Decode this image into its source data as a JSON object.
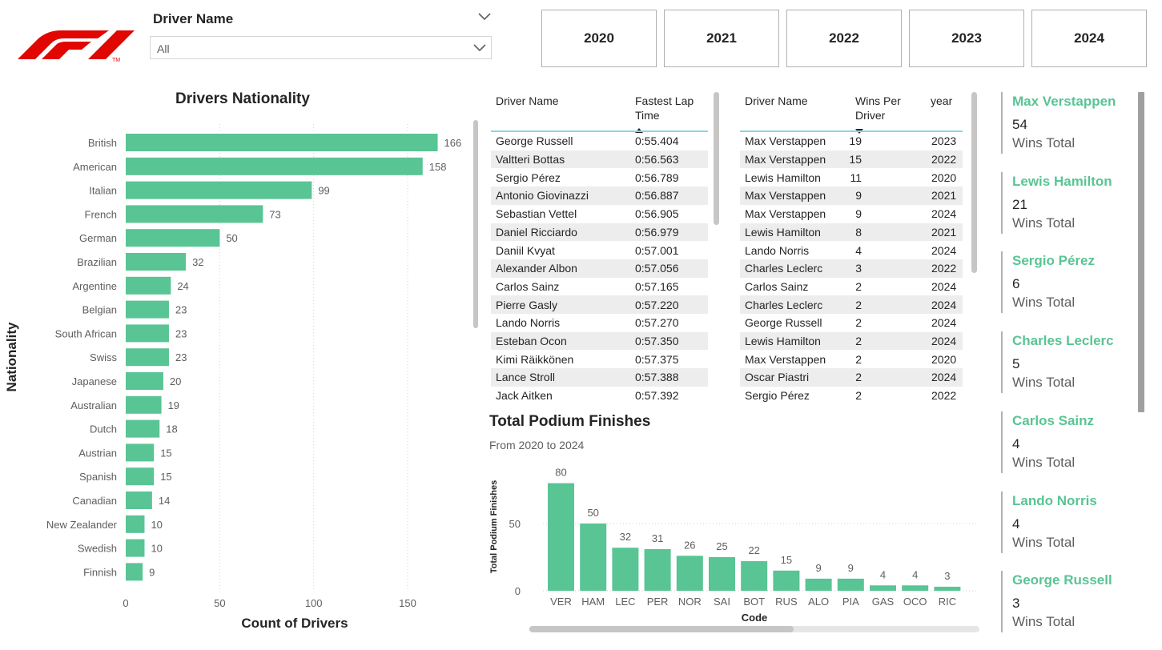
{
  "colors": {
    "accent": "#59c494",
    "bar": "#59c494",
    "logo": "#e10600",
    "header_line": "#8dd3e9"
  },
  "logo": {
    "tm": "TM"
  },
  "slicer": {
    "title": "Driver Name",
    "value": "All"
  },
  "years": [
    "2020",
    "2021",
    "2022",
    "2023",
    "2024"
  ],
  "nationality_chart": {
    "title": "Drivers Nationality",
    "xlabel": "Count of Drivers",
    "ylabel": "Nationality"
  },
  "fastest_lap_table": {
    "headers": {
      "driver": "Driver Name",
      "lap": "Fastest Lap Time"
    },
    "rows": [
      [
        "George Russell",
        "0:55.404"
      ],
      [
        "Valtteri Bottas",
        "0:56.563"
      ],
      [
        "Sergio Pérez",
        "0:56.789"
      ],
      [
        "Antonio Giovinazzi",
        "0:56.887"
      ],
      [
        "Sebastian Vettel",
        "0:56.905"
      ],
      [
        "Daniel Ricciardo",
        "0:56.979"
      ],
      [
        "Daniil Kvyat",
        "0:57.001"
      ],
      [
        "Alexander Albon",
        "0:57.056"
      ],
      [
        "Carlos Sainz",
        "0:57.165"
      ],
      [
        "Pierre Gasly",
        "0:57.220"
      ],
      [
        "Lando Norris",
        "0:57.270"
      ],
      [
        "Esteban Ocon",
        "0:57.350"
      ],
      [
        "Kimi Räikkönen",
        "0:57.375"
      ],
      [
        "Lance Stroll",
        "0:57.388"
      ],
      [
        "Jack Aitken",
        "0:57.392"
      ]
    ]
  },
  "wins_table": {
    "headers": {
      "driver": "Driver Name",
      "wins": "Wins Per Driver",
      "year": "year"
    },
    "rows": [
      [
        "Max Verstappen",
        "19",
        "2023"
      ],
      [
        "Max Verstappen",
        "15",
        "2022"
      ],
      [
        "Lewis Hamilton",
        "11",
        "2020"
      ],
      [
        "Max Verstappen",
        "9",
        "2021"
      ],
      [
        "Max Verstappen",
        "9",
        "2024"
      ],
      [
        "Lewis Hamilton",
        "8",
        "2021"
      ],
      [
        "Lando Norris",
        "4",
        "2024"
      ],
      [
        "Charles Leclerc",
        "3",
        "2022"
      ],
      [
        "Carlos Sainz",
        "2",
        "2024"
      ],
      [
        "Charles Leclerc",
        "2",
        "2024"
      ],
      [
        "George Russell",
        "2",
        "2024"
      ],
      [
        "Lewis Hamilton",
        "2",
        "2024"
      ],
      [
        "Max Verstappen",
        "2",
        "2020"
      ],
      [
        "Oscar Piastri",
        "2",
        "2024"
      ],
      [
        "Sergio Pérez",
        "2",
        "2022"
      ]
    ]
  },
  "podium_chart": {
    "title": "Total Podium Finishes",
    "subtitle": "From 2020 to 2024",
    "xlabel": "Code",
    "ylabel": "Total Podium Finishes"
  },
  "cards": [
    {
      "name": "Max Verstappen",
      "value": "54",
      "label": "Wins Total"
    },
    {
      "name": "Lewis Hamilton",
      "value": "21",
      "label": "Wins Total"
    },
    {
      "name": "Sergio Pérez",
      "value": "6",
      "label": "Wins Total"
    },
    {
      "name": "Charles Leclerc",
      "value": "5",
      "label": "Wins Total"
    },
    {
      "name": "Carlos Sainz",
      "value": "4",
      "label": "Wins Total"
    },
    {
      "name": "Lando Norris",
      "value": "4",
      "label": "Wins Total"
    },
    {
      "name": "George Russell",
      "value": "3",
      "label": "Wins Total"
    }
  ],
  "chart_data": [
    {
      "type": "bar",
      "orientation": "horizontal",
      "title": "Drivers Nationality",
      "xlabel": "Count of Drivers",
      "ylabel": "Nationality",
      "categories": [
        "British",
        "American",
        "Italian",
        "French",
        "German",
        "Brazilian",
        "Argentine",
        "Belgian",
        "South African",
        "Swiss",
        "Japanese",
        "Australian",
        "Dutch",
        "Austrian",
        "Spanish",
        "Canadian",
        "New Zealander",
        "Swedish",
        "Finnish"
      ],
      "values": [
        166,
        158,
        99,
        73,
        50,
        32,
        24,
        23,
        23,
        23,
        20,
        19,
        18,
        15,
        15,
        14,
        10,
        10,
        9
      ],
      "xticks": [
        0,
        50,
        100,
        150
      ],
      "xlim": [
        0,
        175
      ],
      "grid": "vertical dotted",
      "data_labels": true
    },
    {
      "type": "bar",
      "title": "Total Podium Finishes",
      "subtitle": "From 2020 to 2024",
      "xlabel": "Code",
      "ylabel": "Total Podium Finishes",
      "categories": [
        "VER",
        "HAM",
        "LEC",
        "PER",
        "NOR",
        "SAI",
        "BOT",
        "RUS",
        "ALO",
        "PIA",
        "GAS",
        "OCO",
        "RIC"
      ],
      "values": [
        80,
        50,
        32,
        31,
        26,
        25,
        22,
        15,
        9,
        9,
        4,
        4,
        3
      ],
      "yticks": [
        0,
        50
      ],
      "ylim": [
        0,
        85
      ],
      "grid": "horizontal dotted",
      "data_labels": true
    }
  ]
}
